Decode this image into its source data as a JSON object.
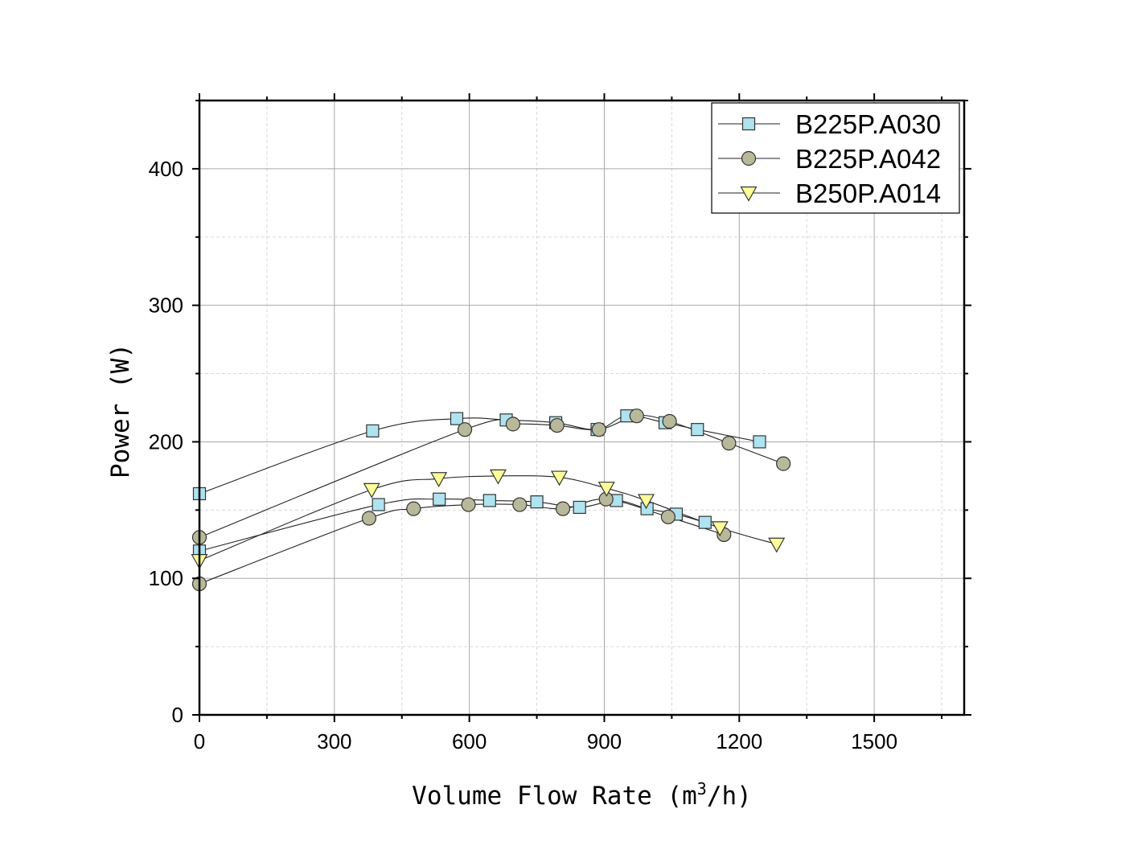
{
  "chart_data": {
    "type": "scatter",
    "title": "",
    "xlabel_main": "Volume Flow Rate (m",
    "xlabel_sup": "3",
    "xlabel_tail": "/h)",
    "ylabel": "Power (W)",
    "xlim": [
      0,
      1700
    ],
    "ylim": [
      0,
      450
    ],
    "x_ticks": [
      0,
      300,
      600,
      900,
      1200,
      1500
    ],
    "y_ticks": [
      0,
      100,
      200,
      300,
      400
    ],
    "x_tick_labels": [
      "0",
      "300",
      "600",
      "900",
      "1200",
      "1500"
    ],
    "y_tick_labels": [
      "0",
      "100",
      "200",
      "300",
      "400"
    ],
    "grid": true,
    "legend_position": "top-right",
    "series": [
      {
        "name": "B225P.A030",
        "marker": "square",
        "color": "#aee3ef",
        "curves": [
          {
            "x": [
              0,
              385,
              572,
              682,
              792,
              884,
              950,
              1035,
              1107,
              1245
            ],
            "y": [
              162,
              208,
              217,
              216,
              214,
              209,
              219,
              214,
              209,
              200
            ]
          },
          {
            "x": [
              0,
              398,
              533,
              645,
              750,
              845,
              927,
              995,
              1060,
              1124
            ],
            "y": [
              120,
              154,
              158,
              157,
              156,
              152,
              157,
              151,
              147,
              141
            ]
          }
        ]
      },
      {
        "name": "B225P.A042",
        "marker": "circle",
        "color": "#b8b89a",
        "curves": [
          {
            "x": [
              0,
              590,
              697,
              795,
              888,
              972,
              1045,
              1177,
              1298
            ],
            "y": [
              130,
              209,
              213,
              212,
              209,
              219,
              215,
              199,
              184
            ]
          },
          {
            "x": [
              0,
              377,
              476,
              598,
              712,
              808,
              904,
              1042,
              1166
            ],
            "y": [
              96,
              144,
              151,
              154,
              154,
              151,
              158,
              145,
              132
            ]
          }
        ]
      },
      {
        "name": "B250P.A014",
        "marker": "triangle-down",
        "color": "#ffff99",
        "curves": [
          {
            "x": [
              0,
              383,
              532,
              664,
              800,
              905,
              993,
              1157,
              1283
            ],
            "y": [
              113,
              165,
              173,
              175,
              174,
              166,
              157,
              137,
              125
            ]
          }
        ]
      }
    ]
  }
}
